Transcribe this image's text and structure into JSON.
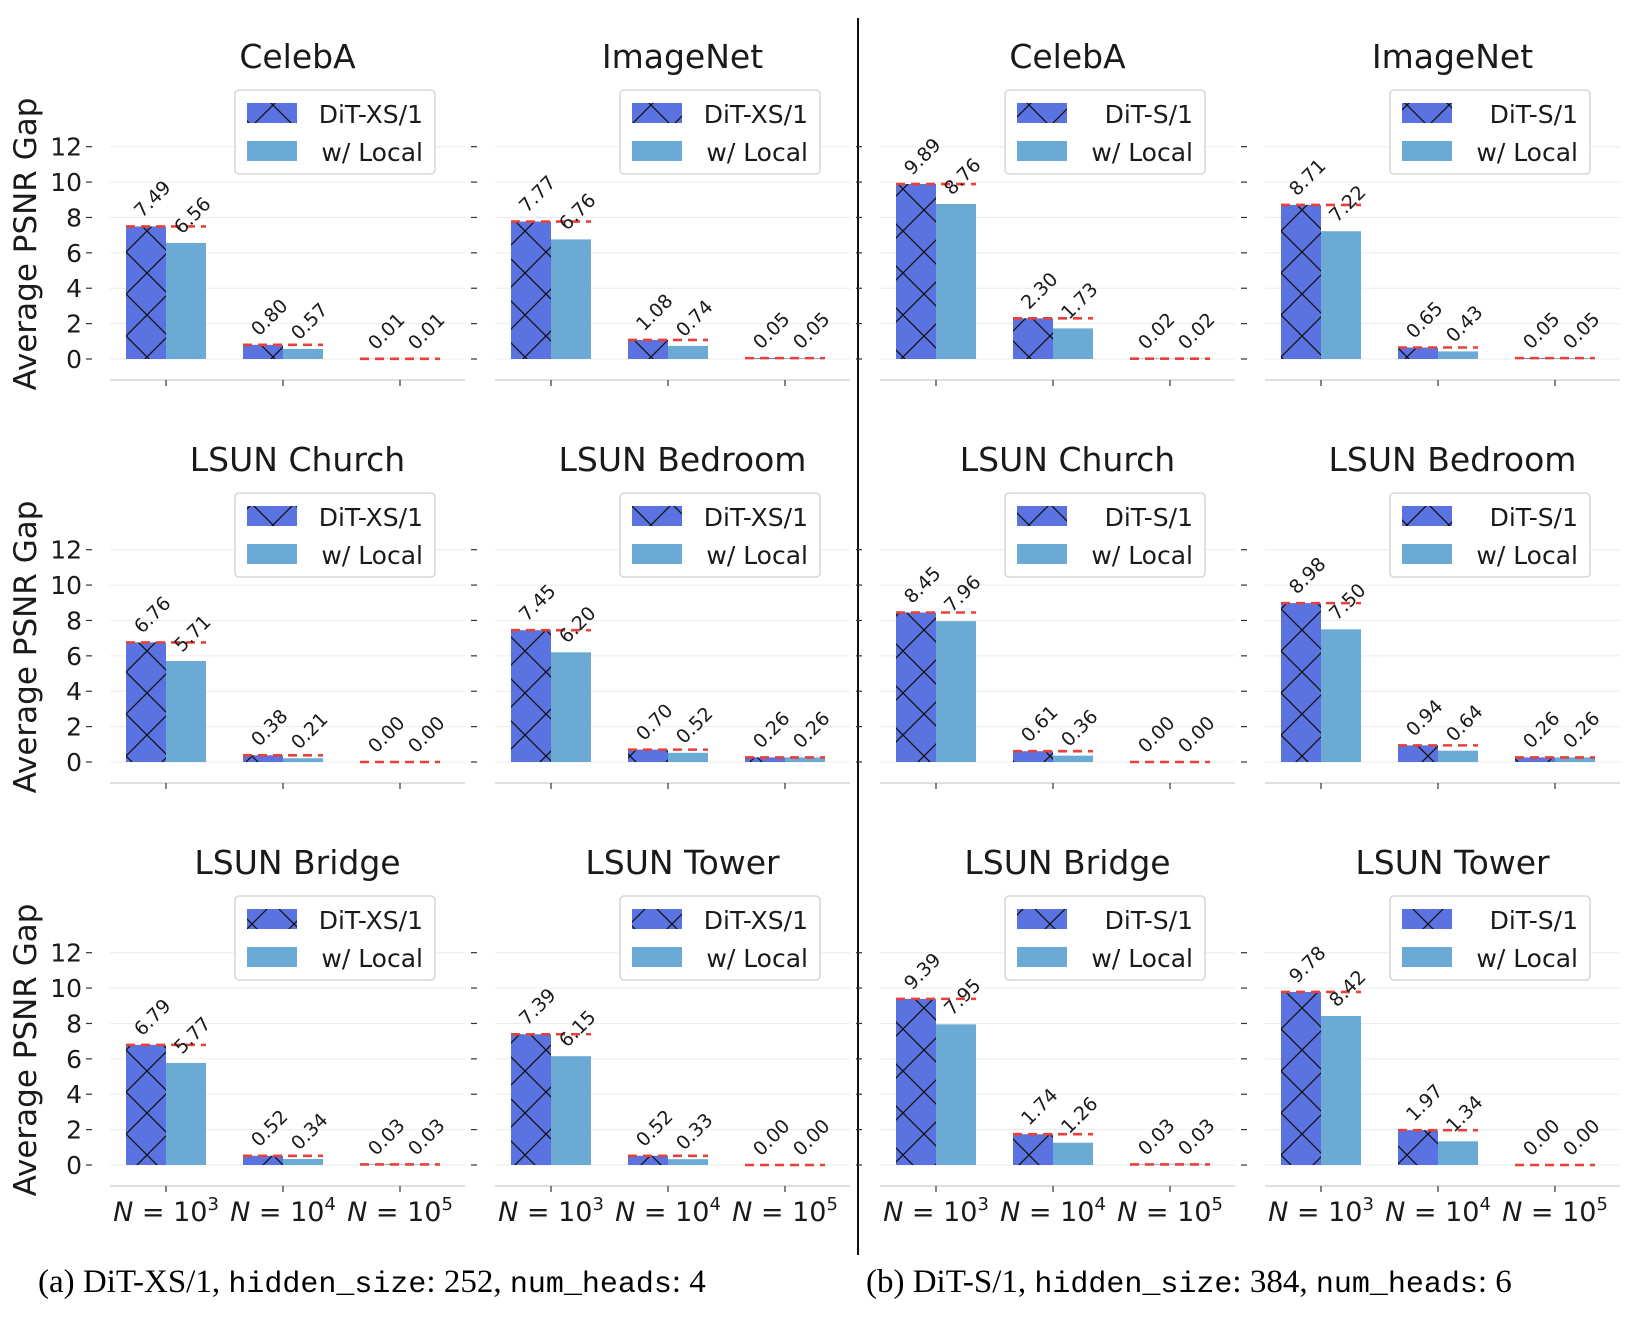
{
  "captions": {
    "a": {
      "prefix": "(a) DiT-XS/1, ",
      "k1": "hidden_size",
      "v1": ": 252, ",
      "k2": "num_heads",
      "v2": ": 4"
    },
    "b": {
      "prefix": "(b) DiT-S/1, ",
      "k1": "hidden_size",
      "v1": ": 384, ",
      "k2": "num_heads",
      "v2": ": 6"
    }
  },
  "colors": {
    "base": "#5a73e0",
    "local": "#6aaad4",
    "ref_line": "#e8403a",
    "grid": "#ececec"
  },
  "chart_data": [
    {
      "type": "bar",
      "title": "CelebA",
      "ylabel": "Average PSNR Gap",
      "categories": [
        "N = 10^3",
        "N = 10^4",
        "N = 10^5"
      ],
      "ylim": [
        0,
        13
      ],
      "yticks": [
        0,
        2,
        4,
        6,
        8,
        10,
        12
      ],
      "legend": "top-right",
      "series": [
        {
          "name": "DiT-XS/1",
          "values": [
            7.49,
            0.8,
            0.01
          ]
        },
        {
          "name": "w/ Local",
          "values": [
            6.56,
            0.57,
            0.01
          ]
        }
      ]
    },
    {
      "type": "bar",
      "title": "ImageNet",
      "ylabel": "",
      "categories": [
        "N = 10^3",
        "N = 10^4",
        "N = 10^5"
      ],
      "ylim": [
        0,
        13
      ],
      "yticks": [
        0,
        2,
        4,
        6,
        8,
        10,
        12
      ],
      "legend": "top-right",
      "series": [
        {
          "name": "DiT-XS/1",
          "values": [
            7.77,
            1.08,
            0.05
          ]
        },
        {
          "name": "w/ Local",
          "values": [
            6.76,
            0.74,
            0.05
          ]
        }
      ]
    },
    {
      "type": "bar",
      "title": "CelebA",
      "ylabel": "",
      "categories": [
        "N = 10^3",
        "N = 10^4",
        "N = 10^5"
      ],
      "ylim": [
        0,
        13
      ],
      "yticks": [
        0,
        2,
        4,
        6,
        8,
        10,
        12
      ],
      "legend": "top-right",
      "series": [
        {
          "name": "DiT-S/1",
          "values": [
            9.89,
            2.3,
            0.02
          ]
        },
        {
          "name": "w/ Local",
          "values": [
            8.76,
            1.73,
            0.02
          ]
        }
      ]
    },
    {
      "type": "bar",
      "title": "ImageNet",
      "ylabel": "",
      "categories": [
        "N = 10^3",
        "N = 10^4",
        "N = 10^5"
      ],
      "ylim": [
        0,
        13
      ],
      "yticks": [
        0,
        2,
        4,
        6,
        8,
        10,
        12
      ],
      "legend": "top-right",
      "series": [
        {
          "name": "DiT-S/1",
          "values": [
            8.71,
            0.65,
            0.05
          ]
        },
        {
          "name": "w/ Local",
          "values": [
            7.22,
            0.43,
            0.05
          ]
        }
      ]
    },
    {
      "type": "bar",
      "title": "LSUN Church",
      "ylabel": "Average PSNR Gap",
      "categories": [
        "N = 10^3",
        "N = 10^4",
        "N = 10^5"
      ],
      "ylim": [
        0,
        13
      ],
      "yticks": [
        0,
        2,
        4,
        6,
        8,
        10,
        12
      ],
      "legend": "top-right",
      "series": [
        {
          "name": "DiT-XS/1",
          "values": [
            6.76,
            0.38,
            0.0
          ]
        },
        {
          "name": "w/ Local",
          "values": [
            5.71,
            0.21,
            0.0
          ]
        }
      ]
    },
    {
      "type": "bar",
      "title": "LSUN Bedroom",
      "ylabel": "",
      "categories": [
        "N = 10^3",
        "N = 10^4",
        "N = 10^5"
      ],
      "ylim": [
        0,
        13
      ],
      "yticks": [
        0,
        2,
        4,
        6,
        8,
        10,
        12
      ],
      "legend": "top-right",
      "series": [
        {
          "name": "DiT-XS/1",
          "values": [
            7.45,
            0.7,
            0.26
          ]
        },
        {
          "name": "w/ Local",
          "values": [
            6.2,
            0.52,
            0.26
          ]
        }
      ]
    },
    {
      "type": "bar",
      "title": "LSUN Church",
      "ylabel": "",
      "categories": [
        "N = 10^3",
        "N = 10^4",
        "N = 10^5"
      ],
      "ylim": [
        0,
        13
      ],
      "yticks": [
        0,
        2,
        4,
        6,
        8,
        10,
        12
      ],
      "legend": "top-right",
      "series": [
        {
          "name": "DiT-S/1",
          "values": [
            8.45,
            0.61,
            0.0
          ]
        },
        {
          "name": "w/ Local",
          "values": [
            7.96,
            0.36,
            0.0
          ]
        }
      ]
    },
    {
      "type": "bar",
      "title": "LSUN Bedroom",
      "ylabel": "",
      "categories": [
        "N = 10^3",
        "N = 10^4",
        "N = 10^5"
      ],
      "ylim": [
        0,
        13
      ],
      "yticks": [
        0,
        2,
        4,
        6,
        8,
        10,
        12
      ],
      "legend": "top-right",
      "series": [
        {
          "name": "DiT-S/1",
          "values": [
            8.98,
            0.94,
            0.26
          ]
        },
        {
          "name": "w/ Local",
          "values": [
            7.5,
            0.64,
            0.26
          ]
        }
      ]
    },
    {
      "type": "bar",
      "title": "LSUN Bridge",
      "ylabel": "Average PSNR Gap",
      "categories": [
        "N = 10^3",
        "N = 10^4",
        "N = 10^5"
      ],
      "ylim": [
        0,
        13
      ],
      "yticks": [
        0,
        2,
        4,
        6,
        8,
        10,
        12
      ],
      "legend": "top-right",
      "series": [
        {
          "name": "DiT-XS/1",
          "values": [
            6.79,
            0.52,
            0.03
          ]
        },
        {
          "name": "w/ Local",
          "values": [
            5.77,
            0.34,
            0.03
          ]
        }
      ]
    },
    {
      "type": "bar",
      "title": "LSUN Tower",
      "ylabel": "",
      "categories": [
        "N = 10^3",
        "N = 10^4",
        "N = 10^5"
      ],
      "ylim": [
        0,
        13
      ],
      "yticks": [
        0,
        2,
        4,
        6,
        8,
        10,
        12
      ],
      "legend": "top-right",
      "series": [
        {
          "name": "DiT-XS/1",
          "values": [
            7.39,
            0.52,
            0.0
          ]
        },
        {
          "name": "w/ Local",
          "values": [
            6.15,
            0.33,
            0.0
          ]
        }
      ]
    },
    {
      "type": "bar",
      "title": "LSUN Bridge",
      "ylabel": "",
      "categories": [
        "N = 10^3",
        "N = 10^4",
        "N = 10^5"
      ],
      "ylim": [
        0,
        13
      ],
      "yticks": [
        0,
        2,
        4,
        6,
        8,
        10,
        12
      ],
      "legend": "top-right",
      "series": [
        {
          "name": "DiT-S/1",
          "values": [
            9.39,
            1.74,
            0.03
          ]
        },
        {
          "name": "w/ Local",
          "values": [
            7.95,
            1.26,
            0.03
          ]
        }
      ]
    },
    {
      "type": "bar",
      "title": "LSUN Tower",
      "ylabel": "",
      "categories": [
        "N = 10^3",
        "N = 10^4",
        "N = 10^5"
      ],
      "ylim": [
        0,
        13
      ],
      "yticks": [
        0,
        2,
        4,
        6,
        8,
        10,
        12
      ],
      "legend": "top-right",
      "series": [
        {
          "name": "DiT-S/1",
          "values": [
            9.78,
            1.97,
            0.0
          ]
        },
        {
          "name": "w/ Local",
          "values": [
            8.42,
            1.34,
            0.0
          ]
        }
      ]
    }
  ]
}
